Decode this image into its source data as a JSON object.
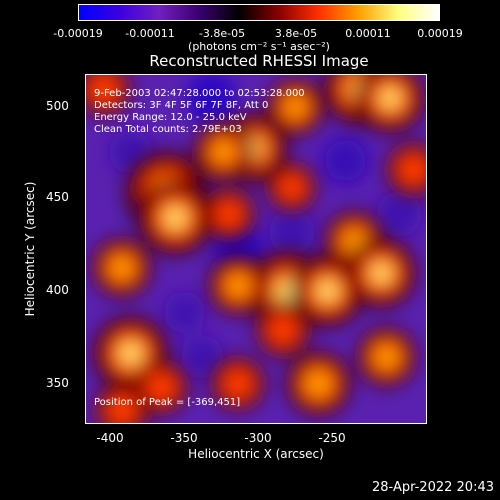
{
  "colorbar": {
    "ticks": [
      "-0.00019",
      "-0.00011",
      "-3.8e-05",
      "3.8e-05",
      "0.00011",
      "0.00019"
    ],
    "unit_label": "(photons cm⁻² s⁻¹ asec⁻²)",
    "colors": [
      "#0000ff",
      "#3a00e0",
      "#7020c0",
      "#3a0070",
      "#000000",
      "#8a0000",
      "#ff3000",
      "#ffa000",
      "#ffff80",
      "#ffffff"
    ]
  },
  "chart_data": {
    "type": "heatmap",
    "title": "Reconstructed RHESSI Image",
    "xlabel": "Heliocentric X (arcsec)",
    "ylabel": "Heliocentric Y (arcsec)",
    "xlim": [
      -415,
      -225
    ],
    "ylim": [
      323,
      518
    ],
    "xticks": [
      "-400",
      "-350",
      "-300",
      "-250"
    ],
    "yticks": [
      "350",
      "400",
      "450",
      "500"
    ],
    "zlim": [
      -0.00019,
      0.00019
    ],
    "annotations": [
      "9-Feb-2003 02:47:28.000 to 02:53:28.000",
      "Detectors: 3F 4F 5F 6F 7F 8F, Att 0",
      "Energy Range: 12.0 - 25.0 keV",
      "Clean     Total counts: 2.79E+03",
      "Position of Peak = [-369,451]"
    ],
    "peak": [
      -369,
      451
    ],
    "bright_sources": [
      {
        "x": -370,
        "y": 452,
        "level": 1.0
      },
      {
        "x": -365,
        "y": 438,
        "level": 0.85
      },
      {
        "x": -395,
        "y": 410,
        "level": 0.55
      },
      {
        "x": -390,
        "y": 362,
        "level": 0.85
      },
      {
        "x": -373,
        "y": 343,
        "level": 0.45
      },
      {
        "x": -322,
        "y": 477,
        "level": 0.75
      },
      {
        "x": -338,
        "y": 475,
        "level": 0.55
      },
      {
        "x": -298,
        "y": 500,
        "level": 0.5
      },
      {
        "x": -262,
        "y": 510,
        "level": 0.8
      },
      {
        "x": -245,
        "y": 505,
        "level": 0.75
      },
      {
        "x": -302,
        "y": 397,
        "level": 0.95
      },
      {
        "x": -280,
        "y": 397,
        "level": 0.8
      },
      {
        "x": -330,
        "y": 400,
        "level": 0.55
      },
      {
        "x": -265,
        "y": 425,
        "level": 0.55
      },
      {
        "x": -250,
        "y": 407,
        "level": 0.75
      },
      {
        "x": -247,
        "y": 360,
        "level": 0.55
      },
      {
        "x": -305,
        "y": 375,
        "level": 0.45
      },
      {
        "x": -285,
        "y": 345,
        "level": 0.65
      },
      {
        "x": -330,
        "y": 345,
        "level": 0.45
      },
      {
        "x": -405,
        "y": 510,
        "level": 0.45
      },
      {
        "x": -335,
        "y": 440,
        "level": 0.4
      },
      {
        "x": -300,
        "y": 455,
        "level": 0.35
      },
      {
        "x": -395,
        "y": 330,
        "level": 0.45
      },
      {
        "x": -232,
        "y": 465,
        "level": 0.45
      }
    ],
    "dark_regions": [
      {
        "x": -330,
        "y": 420,
        "level": -0.5
      },
      {
        "x": -345,
        "y": 505,
        "level": -0.5
      },
      {
        "x": -270,
        "y": 470,
        "level": -0.45
      },
      {
        "x": -270,
        "y": 470,
        "level": -0.3
      },
      {
        "x": -390,
        "y": 475,
        "level": -0.35
      },
      {
        "x": -300,
        "y": 430,
        "level": -0.4
      },
      {
        "x": -350,
        "y": 360,
        "level": -0.35
      },
      {
        "x": -240,
        "y": 440,
        "level": -0.4
      },
      {
        "x": -360,
        "y": 385,
        "level": -0.3
      }
    ]
  },
  "footer": {
    "timestamp": "28-Apr-2022 20:43"
  }
}
